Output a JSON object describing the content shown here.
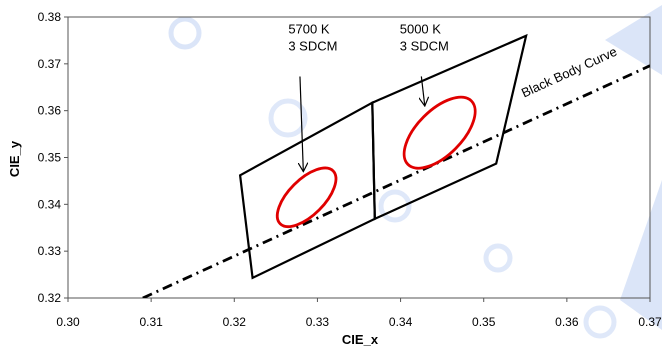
{
  "chart_data": {
    "type": "scatter",
    "title": "",
    "xlabel": "CIE_x",
    "ylabel": "CIE_y",
    "xlim": [
      0.3,
      0.37
    ],
    "ylim": [
      0.32,
      0.38
    ],
    "x_ticks": [
      "0.30",
      "0.31",
      "0.32",
      "0.33",
      "0.34",
      "0.35",
      "0.36",
      "0.37"
    ],
    "y_ticks": [
      "0.32",
      "0.33",
      "0.34",
      "0.35",
      "0.36",
      "0.37",
      "0.38"
    ],
    "grid": false,
    "black_body_curve": {
      "label": "Black Body Curve",
      "color": "#000000",
      "points": [
        [
          0.309,
          0.32
        ],
        [
          0.37,
          0.3696
        ]
      ]
    },
    "quadrangles": [
      {
        "name": "5700 K",
        "points": [
          [
            0.3207,
            0.3462
          ],
          [
            0.3366,
            0.3617
          ],
          [
            0.3369,
            0.3369
          ],
          [
            0.3222,
            0.3243
          ]
        ]
      },
      {
        "name": "5000 K",
        "points": [
          [
            0.3366,
            0.3617
          ],
          [
            0.3551,
            0.376
          ],
          [
            0.3515,
            0.3487
          ],
          [
            0.3369,
            0.3369
          ]
        ]
      }
    ],
    "ellipses": [
      {
        "center": [
          0.3287,
          0.3415
        ],
        "rx": 0.0045,
        "ry": 0.0038,
        "angle_deg": 45,
        "color": "#e00000"
      },
      {
        "center": [
          0.3447,
          0.3553
        ],
        "rx": 0.0054,
        "ry": 0.0048,
        "angle_deg": 45,
        "color": "#e00000"
      }
    ],
    "annotations": [
      {
        "lines": [
          "5700 K",
          "3 SDCM"
        ],
        "anchor": [
          0.3265,
          0.3765
        ],
        "arrow_from": [
          0.3279,
          0.3673
        ],
        "arrow_to": [
          0.3283,
          0.3472
        ]
      },
      {
        "lines": [
          "5000 K",
          "3 SDCM"
        ],
        "anchor": [
          0.3399,
          0.3765
        ],
        "arrow_from": [
          0.3425,
          0.3673
        ],
        "arrow_to": [
          0.3429,
          0.3612
        ]
      }
    ],
    "colors": {
      "ellipse": "#e00000",
      "lines": "#000000",
      "watermark": "#3a6fd8"
    }
  }
}
